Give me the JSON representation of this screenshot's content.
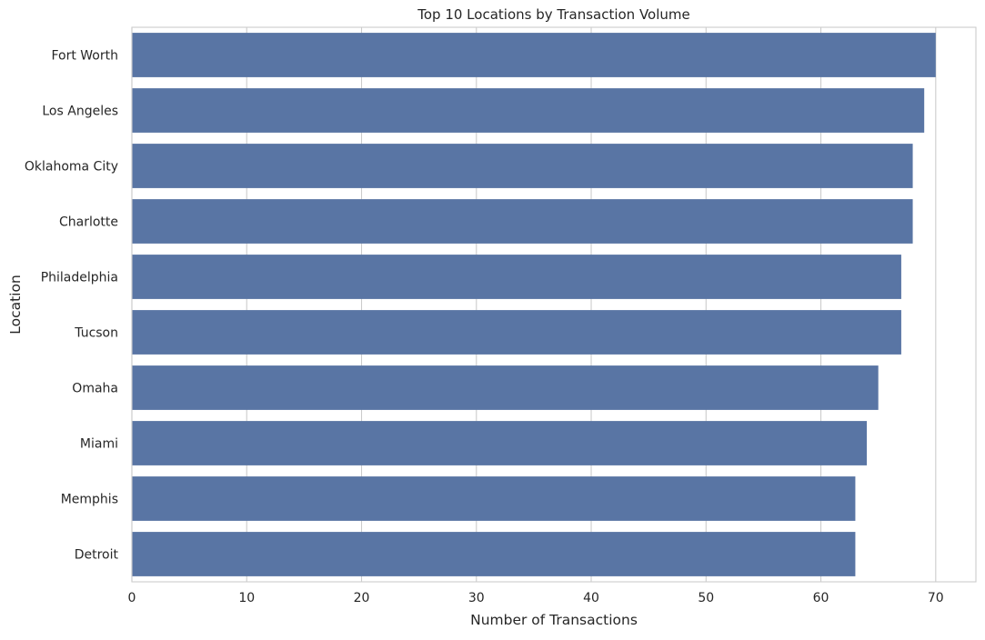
{
  "chart_data": {
    "type": "bar",
    "orientation": "horizontal",
    "title": "Top 10 Locations by Transaction Volume",
    "xlabel": "Number of Transactions",
    "ylabel": "Location",
    "categories": [
      "Fort Worth",
      "Los Angeles",
      "Oklahoma City",
      "Charlotte",
      "Philadelphia",
      "Tucson",
      "Omaha",
      "Miami",
      "Memphis",
      "Detroit"
    ],
    "values": [
      70,
      69,
      68,
      68,
      67,
      67,
      65,
      64,
      63,
      63
    ],
    "xlim": [
      0,
      73.5
    ],
    "xticks": [
      0,
      10,
      20,
      30,
      40,
      50,
      60,
      70
    ],
    "grid": "vertical",
    "bar_color": "#5975a4",
    "grid_color": "#cccccc",
    "spine_color": "#cccccc"
  }
}
